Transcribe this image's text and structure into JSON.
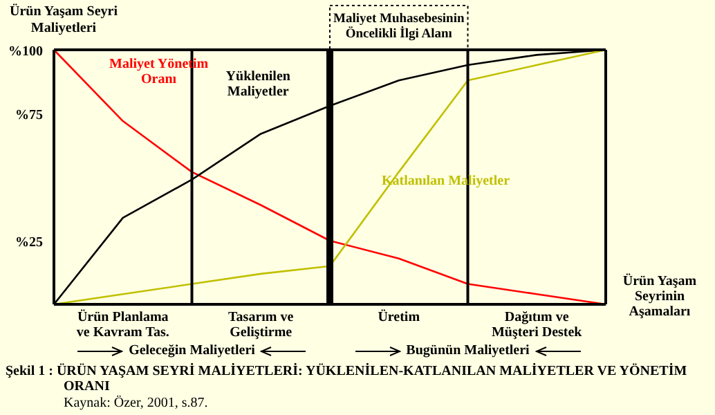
{
  "chart_data": {
    "type": "line",
    "ylabel": "Ürün Yaşam Seyri Maliyetleri",
    "xlabel": "Ürün Yaşam Seyrinin Aşamaları",
    "categories": [
      null,
      "Ürün Planlama ve Kavram Tas.",
      null,
      "Tasarım ve Geliştirme",
      null,
      "Üretim",
      null,
      "Dağıtım ve Müşteri Destek",
      null
    ],
    "ylim": [
      0,
      100
    ],
    "yticks": [
      {
        "value": 25,
        "label": "%25"
      },
      {
        "value": 75,
        "label": "%75"
      },
      {
        "value": 100,
        "label": "%100"
      }
    ],
    "series": [
      {
        "name": "Maliyet Yönetim Oranı",
        "color": "#ff0000",
        "values": [
          100,
          72,
          52,
          39,
          25,
          18,
          8,
          4,
          0
        ]
      },
      {
        "name": "Yüklenilen Maliyetler",
        "color": "#000000",
        "values": [
          0,
          34,
          49,
          67,
          78,
          88,
          94,
          98,
          100
        ]
      },
      {
        "name": "Katlanılan Maliyetler",
        "color": "#c0c000",
        "values": [
          0,
          4,
          8,
          12,
          15,
          52,
          88,
          94,
          100
        ]
      }
    ],
    "annotations": [
      "Maliyet Muhasebesinin Öncelikli İlgi Alanı",
      "Geleceğin Maliyetleri",
      "Bugünün Maliyetleri",
      "Şekil 1 : ÜRÜN YAŞAM SEYRİ MALİYETLERİ: YÜKLENİLEN-KATLANILAN MALİYETLER VE YÖNETİM ORANI",
      "Kaynak: Özer, 2001, s.87."
    ],
    "marker": "none",
    "line_style": "solid",
    "legend": false,
    "grid": "x"
  }
}
